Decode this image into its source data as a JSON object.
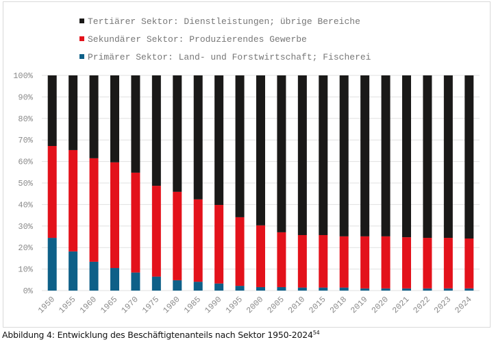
{
  "chart_data": {
    "type": "bar",
    "stacked": true,
    "percent": true,
    "categories": [
      "1950",
      "1955",
      "1960",
      "1965",
      "1970",
      "1975",
      "1980",
      "1985",
      "1990",
      "1995",
      "2000",
      "2005",
      "2010",
      "2015",
      "2018",
      "2019",
      "2020",
      "2021",
      "2022",
      "2023",
      "2024"
    ],
    "series": [
      {
        "name": "Primärer Sektor: Land- und Forstwirtschaft; Fischerei",
        "color": "#0e6088",
        "values": [
          24.5,
          18.2,
          13.4,
          10.5,
          8.4,
          6.5,
          4.8,
          4.1,
          3.3,
          2.2,
          1.6,
          1.6,
          1.4,
          1.4,
          1.4,
          1.0,
          1.0,
          1.0,
          1.0,
          1.0,
          1.0
        ]
      },
      {
        "name": "Sekundärer Sektor: Produzierendes Gewerbe",
        "color": "#e3121b",
        "values": [
          42.7,
          47.1,
          48.1,
          49.1,
          46.4,
          42.2,
          41.1,
          38.3,
          36.5,
          31.9,
          28.7,
          25.5,
          24.4,
          24.4,
          23.8,
          24.2,
          24.2,
          23.8,
          23.5,
          23.5,
          23.2
        ]
      },
      {
        "name": "Tertiärer Sektor: Dienstleistungen; übrige Bereiche",
        "color": "#1a1918",
        "values": [
          32.8,
          34.7,
          38.5,
          40.4,
          45.2,
          51.3,
          54.1,
          57.6,
          60.2,
          65.9,
          69.7,
          72.9,
          74.2,
          74.2,
          74.8,
          74.8,
          74.8,
          75.2,
          75.5,
          75.5,
          75.8
        ]
      }
    ],
    "legend_order": [
      2,
      1,
      0
    ],
    "legend_placement": "top",
    "yticks": [
      "0%",
      "10%",
      "20%",
      "30%",
      "40%",
      "50%",
      "60%",
      "70%",
      "80%",
      "90%",
      "100%"
    ],
    "ylim": [
      0,
      100
    ],
    "grid": true,
    "xlabel": "",
    "ylabel": ""
  },
  "caption": {
    "text": "Abbildung 4: Entwicklung des Beschäftigtenanteils nach Sektor 1950-2024",
    "footnote": "54"
  }
}
